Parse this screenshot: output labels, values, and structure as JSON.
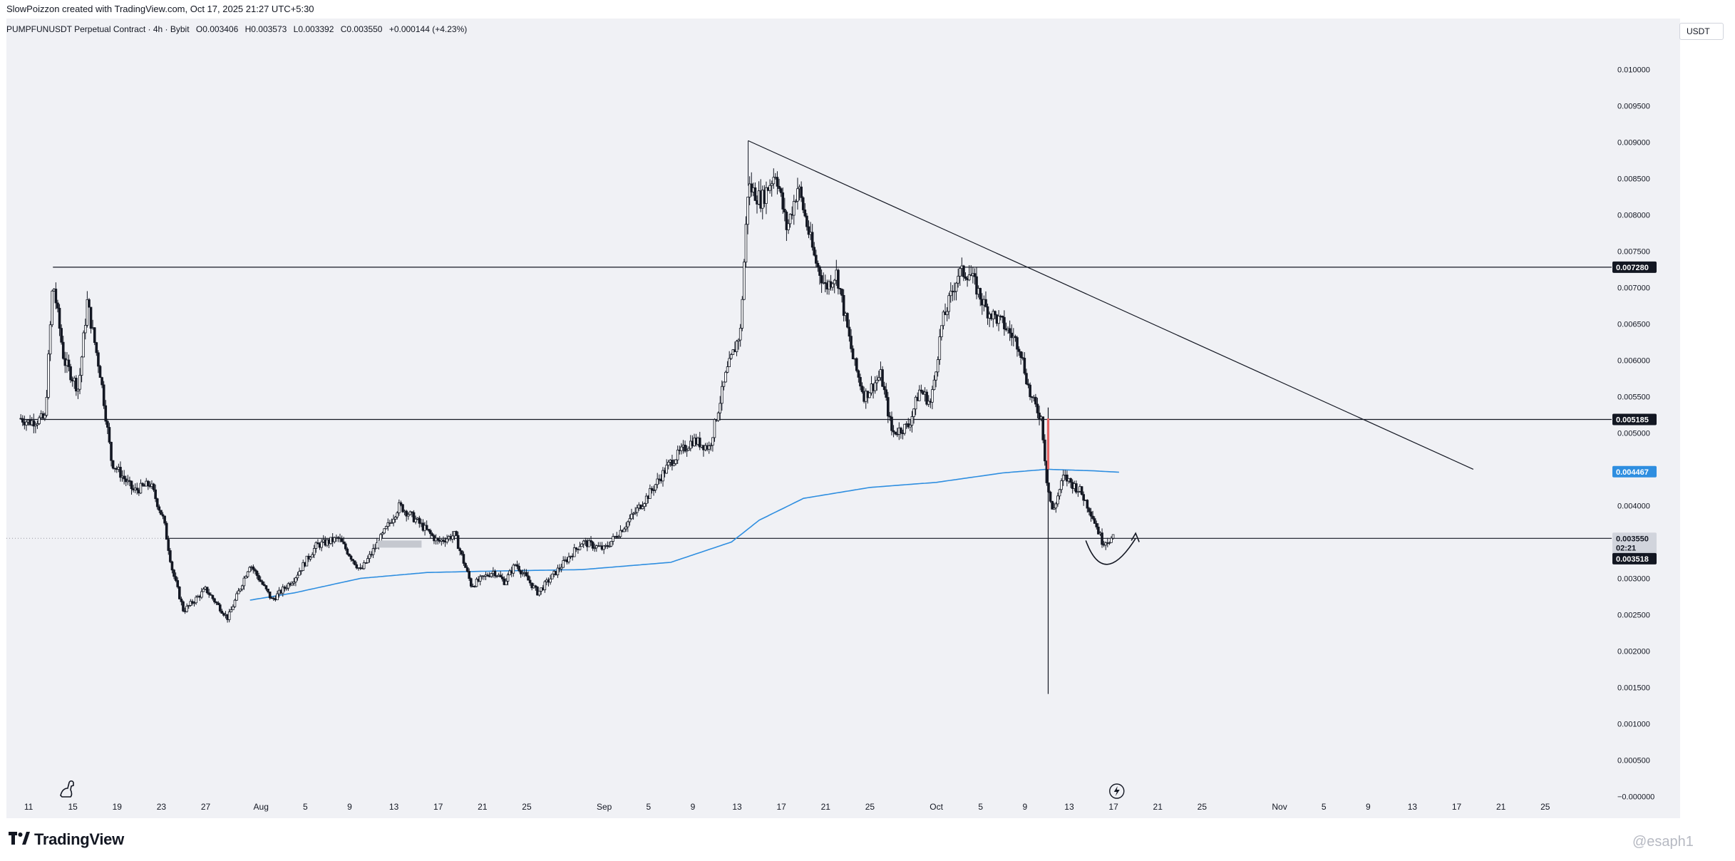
{
  "header": {
    "attribution": "SlowPoizzon created with TradingView.com, Oct 17, 2025 21:27 UTC+5:30"
  },
  "symbol": {
    "title": "PUMPFUNUSDT Perpetual Contract · 4h · Bybit",
    "open": "O0.003406",
    "high": "H0.003573",
    "low": "L0.003392",
    "close": "C0.003550",
    "change": "+0.000144 (+4.23%)"
  },
  "currency": "USDT",
  "footer": {
    "brand": "TradingView",
    "watermark": "@esaph1"
  },
  "colors": {
    "background": "#f0f1f5",
    "candle": "#131722",
    "ma_line": "#2e8ee0",
    "price_label_bg": "#131722",
    "ma_label_bg": "#2e8ee0",
    "highlight_candle": "#e36464"
  },
  "icons": {
    "bottom_left": "dino-icon",
    "bottom_mid": "lightning-icon",
    "footer_logo": "tradingview-logo-icon"
  },
  "chart_data": {
    "type": "candlestick",
    "timeframe": "4h",
    "y_axis": {
      "ticks": [
        "0.010000",
        "0.009500",
        "0.009000",
        "0.008500",
        "0.008000",
        "0.007500",
        "0.007000",
        "0.006500",
        "0.006000",
        "0.005500",
        "0.005000",
        "0.004500",
        "0.004000",
        "0.003500",
        "0.003000",
        "0.002500",
        "0.002000",
        "0.001500",
        "0.001000",
        "0.000500",
        "−0.000000"
      ],
      "tick_values": [
        0.01,
        0.0095,
        0.009,
        0.0085,
        0.008,
        0.0075,
        0.007,
        0.0065,
        0.006,
        0.0055,
        0.005,
        0.0045,
        0.004,
        0.0035,
        0.003,
        0.0025,
        0.002,
        0.0015,
        0.001,
        0.0005,
        0.0
      ],
      "range": [
        -0.0003,
        0.0107
      ]
    },
    "x_axis": {
      "ticks": [
        "11",
        "15",
        "19",
        "23",
        "27",
        "Aug",
        "5",
        "9",
        "13",
        "17",
        "21",
        "25",
        "Sep",
        "5",
        "9",
        "13",
        "17",
        "21",
        "25",
        "Oct",
        "5",
        "9",
        "13",
        "17",
        "21",
        "25",
        "Nov",
        "5",
        "9",
        "13",
        "17",
        "21",
        "25"
      ],
      "tick_days": [
        0,
        4,
        8,
        12,
        16,
        21,
        25,
        29,
        33,
        37,
        41,
        45,
        52,
        56,
        60,
        64,
        68,
        72,
        76,
        82,
        86,
        90,
        94,
        98,
        102,
        106,
        113,
        117,
        121,
        125,
        129,
        133,
        137
      ],
      "range_days": [
        -2,
        143
      ]
    },
    "ohlc_anchors": [
      {
        "day": -0.7,
        "price": 0.0052
      },
      {
        "day": 0,
        "price": 0.00515
      },
      {
        "day": 1.5,
        "price": 0.0052
      },
      {
        "day": 2.2,
        "price": 0.0071
      },
      {
        "day": 3.2,
        "price": 0.006
      },
      {
        "day": 4.5,
        "price": 0.0056
      },
      {
        "day": 5.3,
        "price": 0.0068
      },
      {
        "day": 6.5,
        "price": 0.0058
      },
      {
        "day": 7.5,
        "price": 0.0046
      },
      {
        "day": 9.5,
        "price": 0.0042
      },
      {
        "day": 11,
        "price": 0.0043
      },
      {
        "day": 12.2,
        "price": 0.0038
      },
      {
        "day": 13,
        "price": 0.0031
      },
      {
        "day": 14,
        "price": 0.00255
      },
      {
        "day": 16,
        "price": 0.00285
      },
      {
        "day": 18,
        "price": 0.00245
      },
      {
        "day": 20,
        "price": 0.0032
      },
      {
        "day": 22,
        "price": 0.0027
      },
      {
        "day": 24,
        "price": 0.003
      },
      {
        "day": 26,
        "price": 0.00345
      },
      {
        "day": 28,
        "price": 0.00355
      },
      {
        "day": 30,
        "price": 0.0031
      },
      {
        "day": 32,
        "price": 0.0036
      },
      {
        "day": 33.5,
        "price": 0.004
      },
      {
        "day": 35,
        "price": 0.0038
      },
      {
        "day": 37,
        "price": 0.0035
      },
      {
        "day": 38.5,
        "price": 0.0036
      },
      {
        "day": 40,
        "price": 0.0029
      },
      {
        "day": 42,
        "price": 0.0031
      },
      {
        "day": 43,
        "price": 0.00295
      },
      {
        "day": 44,
        "price": 0.0032
      },
      {
        "day": 46,
        "price": 0.0028
      },
      {
        "day": 48,
        "price": 0.00315
      },
      {
        "day": 50,
        "price": 0.0035
      },
      {
        "day": 52,
        "price": 0.0034
      },
      {
        "day": 54,
        "price": 0.00375
      },
      {
        "day": 56,
        "price": 0.00415
      },
      {
        "day": 58,
        "price": 0.0046
      },
      {
        "day": 60,
        "price": 0.0049
      },
      {
        "day": 61.5,
        "price": 0.0048
      },
      {
        "day": 63,
        "price": 0.0058
      },
      {
        "day": 64.3,
        "price": 0.0064
      },
      {
        "day": 65,
        "price": 0.0084
      },
      {
        "day": 66.2,
        "price": 0.0082
      },
      {
        "day": 67.5,
        "price": 0.0086
      },
      {
        "day": 68.5,
        "price": 0.0078
      },
      {
        "day": 69.5,
        "price": 0.0084
      },
      {
        "day": 71,
        "price": 0.0074
      },
      {
        "day": 72,
        "price": 0.007
      },
      {
        "day": 73,
        "price": 0.0072
      },
      {
        "day": 74.5,
        "price": 0.006
      },
      {
        "day": 75.5,
        "price": 0.0055
      },
      {
        "day": 77,
        "price": 0.0058
      },
      {
        "day": 78,
        "price": 0.005
      },
      {
        "day": 79.5,
        "price": 0.0051
      },
      {
        "day": 80.5,
        "price": 0.0056
      },
      {
        "day": 81.5,
        "price": 0.0054
      },
      {
        "day": 82.5,
        "price": 0.0065
      },
      {
        "day": 84,
        "price": 0.0072
      },
      {
        "day": 85,
        "price": 0.0072
      },
      {
        "day": 86.5,
        "price": 0.0067
      },
      {
        "day": 88,
        "price": 0.0065
      },
      {
        "day": 89.5,
        "price": 0.0062
      },
      {
        "day": 90.5,
        "price": 0.0055
      },
      {
        "day": 91.5,
        "price": 0.0052
      },
      {
        "day": 92,
        "price": 0.0043
      },
      {
        "day": 92.5,
        "price": 0.0039
      },
      {
        "day": 93.5,
        "price": 0.0044
      },
      {
        "day": 95,
        "price": 0.0042
      },
      {
        "day": 96,
        "price": 0.0039
      },
      {
        "day": 97,
        "price": 0.0035
      },
      {
        "day": 98,
        "price": 0.00355
      }
    ],
    "moving_average": [
      {
        "day": 20,
        "price": 0.0027
      },
      {
        "day": 24,
        "price": 0.0028
      },
      {
        "day": 30,
        "price": 0.003
      },
      {
        "day": 36,
        "price": 0.00308
      },
      {
        "day": 42,
        "price": 0.0031
      },
      {
        "day": 50,
        "price": 0.00312
      },
      {
        "day": 58,
        "price": 0.00322
      },
      {
        "day": 63.5,
        "price": 0.0035
      },
      {
        "day": 66,
        "price": 0.0038
      },
      {
        "day": 70,
        "price": 0.0041
      },
      {
        "day": 76,
        "price": 0.00425
      },
      {
        "day": 82,
        "price": 0.00432
      },
      {
        "day": 88,
        "price": 0.00445
      },
      {
        "day": 92,
        "price": 0.0045
      },
      {
        "day": 96,
        "price": 0.00448
      },
      {
        "day": 98.5,
        "price": 0.00446
      }
    ],
    "spike_low": {
      "day": 92.1,
      "price": 0.00141
    },
    "horizontal_levels": [
      {
        "price": 0.00728,
        "label": "0.007280",
        "start_day": 2.2
      },
      {
        "price": 0.005185,
        "label": "0.005185",
        "start_day": -0.7
      },
      {
        "price": 0.00355,
        "label": "0.003550",
        "start_day": 12.5
      }
    ],
    "trendline": {
      "from": {
        "day": 65,
        "price": 0.00902
      },
      "to": {
        "day": 130.5,
        "price": 0.0045
      }
    },
    "price_labels": {
      "last_price": "0.003550",
      "countdown": "02:21",
      "bid": "0.003518",
      "ma_value": "0.004467"
    },
    "annotation": "rounded-bottom arc with arrow near Oct 17"
  }
}
